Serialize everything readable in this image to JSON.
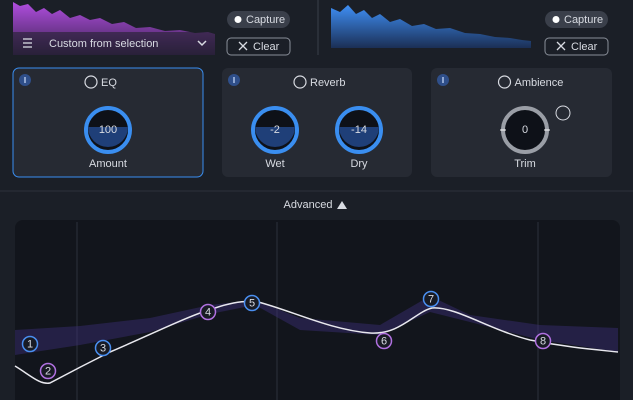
{
  "reference_panel": {
    "preset": "Custom from selection",
    "capture": "Capture",
    "clear": "Clear"
  },
  "target_panel": {
    "capture": "Capture",
    "clear": "Clear"
  },
  "modules": [
    {
      "title": "EQ",
      "knobs": [
        {
          "value": 100,
          "label": "Amount"
        }
      ]
    },
    {
      "title": "Reverb",
      "knobs": [
        {
          "value": -2,
          "label": "Wet"
        },
        {
          "value": -14,
          "label": "Dry"
        }
      ]
    },
    {
      "title": "Ambience",
      "knobs": [
        {
          "value": 0,
          "label": "Trim"
        }
      ]
    }
  ],
  "advanced": "Advanced",
  "eq_nodes": [
    1,
    2,
    3,
    4,
    5,
    6,
    7,
    8
  ]
}
